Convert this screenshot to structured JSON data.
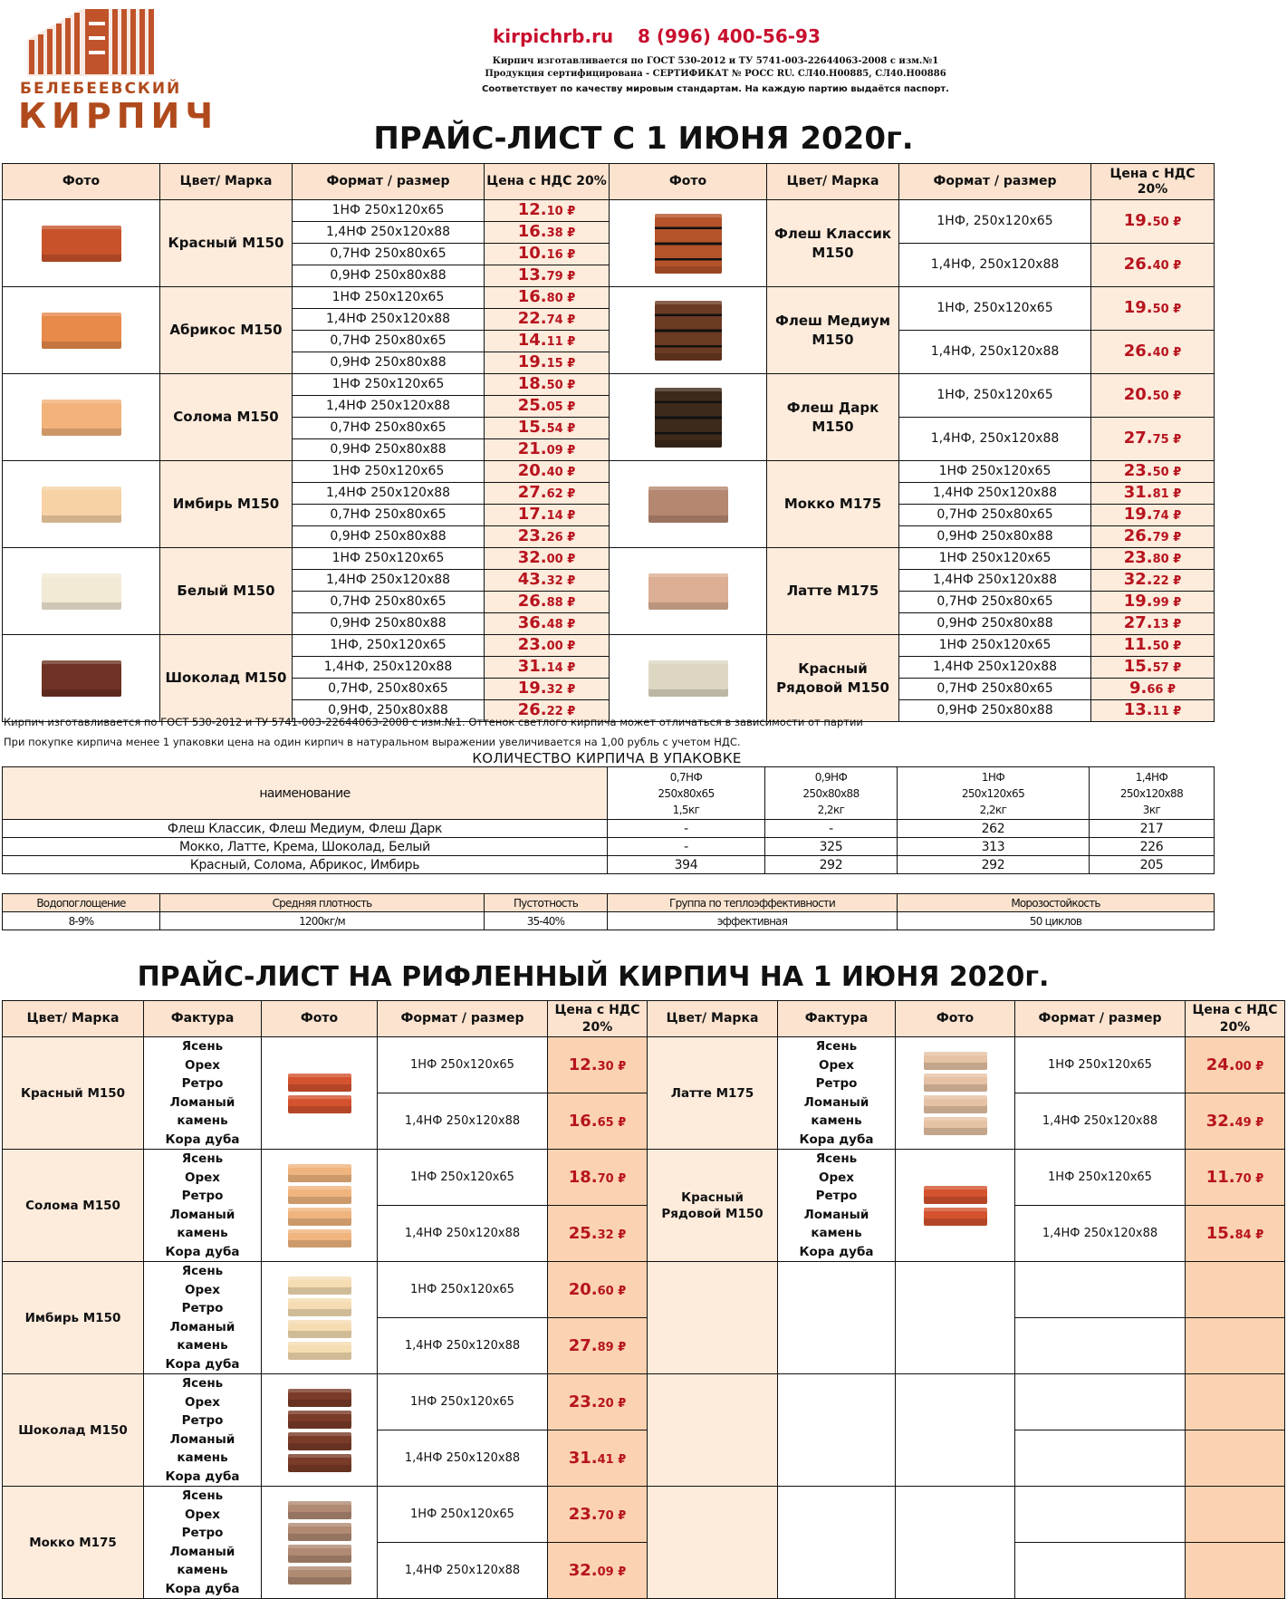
{
  "header": {
    "logo_line1": "БЕЛЕБЕЕВСКИЙ",
    "logo_line2": "КИРПИЧ",
    "site": "kirpichrb.ru",
    "phone": "8 (996) 400-56-93",
    "line1": "Кирпич изготавливается по ГОСТ 530-2012 и ТУ 5741-003-22644063-2008 с изм.№1",
    "line2": "Продукция сертифицирована - СЕРТИФИКАТ № РОСС RU. СЛ40.Н00885, СЛ40.Н00886",
    "line3": "Соответствует по качеству мировым стандартам. На каждую партию выдаётся паспорт."
  },
  "price_title": "ПРАЙС-ЛИСТ С 1 ИЮНЯ 2020г.",
  "columns": [
    "Фото",
    "Цвет/ Марка",
    "Формат / размер",
    "Цена с НДС 20%"
  ],
  "currency": "₽",
  "left_groups": [
    {
      "name": "Красный М150",
      "color": "#c8532a",
      "rows": [
        [
          "1НФ  250х120х65",
          "12.",
          "10"
        ],
        [
          "1,4НФ 250х120х88",
          "16.",
          "38"
        ],
        [
          "0,7НФ  250х80х65",
          "10.",
          "16"
        ],
        [
          "0,9НФ 250х80х88",
          "13.",
          "79"
        ]
      ]
    },
    {
      "name": "Абрикос М150",
      "color": "#e88a4a",
      "rows": [
        [
          "1НФ  250х120х65",
          "16.",
          "80"
        ],
        [
          "1,4НФ 250х120х88",
          "22.",
          "74"
        ],
        [
          "0,7НФ  250х80х65",
          "14.",
          "11"
        ],
        [
          "0,9НФ 250х80х88",
          "19.",
          "15"
        ]
      ]
    },
    {
      "name": "Солома М150",
      "color": "#f2b27a",
      "rows": [
        [
          "1НФ  250х120х65",
          "18.",
          "50"
        ],
        [
          "1,4НФ 250х120х88",
          "25.",
          "05"
        ],
        [
          "0,7НФ  250х80х65",
          "15.",
          "54"
        ],
        [
          "0,9НФ 250х80х88",
          "21.",
          "09"
        ]
      ]
    },
    {
      "name": "Имбирь М150",
      "color": "#f6d2a4",
      "rows": [
        [
          "1НФ  250х120х65",
          "20.",
          "40"
        ],
        [
          "1,4НФ 250х120х88",
          "27.",
          "62"
        ],
        [
          "0,7НФ  250х80х65",
          "17.",
          "14"
        ],
        [
          "0,9НФ 250х80х88",
          "23.",
          "26"
        ]
      ]
    },
    {
      "name": "Белый М150",
      "color": "#f3ead6",
      "rows": [
        [
          "1НФ  250х120х65",
          "32.",
          "00"
        ],
        [
          "1,4НФ 250х120х88",
          "43.",
          "32"
        ],
        [
          "0,7НФ  250х80х65",
          "26.",
          "88"
        ],
        [
          "0,9НФ 250х80х88",
          "36.",
          "48"
        ]
      ]
    },
    {
      "name": "Шоколад М150",
      "color": "#6e3324",
      "rows": [
        [
          "1НФ, 250х120х65",
          "23.",
          "00"
        ],
        [
          "1,4НФ, 250х120х88",
          "31.",
          "14"
        ],
        [
          "0,7НФ, 250х80х65",
          "19.",
          "32"
        ],
        [
          "0,9НФ, 250х80х88",
          "26.",
          "22"
        ]
      ]
    }
  ],
  "right_flash": [
    {
      "name": "Флеш Классик М150",
      "color": "#b5532a",
      "rows": [
        [
          "1НФ, 250х120х65",
          "19.",
          "50"
        ],
        [
          "1,4НФ, 250х120х88",
          "26.",
          "40"
        ]
      ]
    },
    {
      "name": "Флеш Медиум М150",
      "color": "#6b3a22",
      "rows": [
        [
          "1НФ, 250х120х65",
          "19.",
          "50"
        ],
        [
          "1,4НФ, 250х120х88",
          "26.",
          "40"
        ]
      ]
    },
    {
      "name": "Флеш Дарк М150",
      "color": "#3d2a1a",
      "rows": [
        [
          "1НФ, 250х120х65",
          "20.",
          "50"
        ],
        [
          "1,4НФ, 250х120х88",
          "27.",
          "75"
        ]
      ]
    }
  ],
  "right_groups": [
    {
      "name": "Мокко М175",
      "color": "#b68770",
      "rows": [
        [
          "1НФ  250х120х65",
          "23.",
          "50"
        ],
        [
          "1,4НФ 250х120х88",
          "31.",
          "81"
        ],
        [
          "0,7НФ  250х80х65",
          "19.",
          "74"
        ],
        [
          "0,9НФ 250х80х88",
          "26.",
          "79"
        ]
      ]
    },
    {
      "name": "Латте М175",
      "color": "#dcae93",
      "rows": [
        [
          "1НФ  250х120х65",
          "23.",
          "80"
        ],
        [
          "1,4НФ 250х120х88",
          "32.",
          "22"
        ],
        [
          "0,7НФ  250х80х65",
          "19.",
          "99"
        ],
        [
          "0,9НФ 250х80х88",
          "27.",
          "13"
        ]
      ]
    },
    {
      "name": "Красный  Рядовой М150",
      "color": "#ddd6c2",
      "rows": [
        [
          "1НФ  250х120х65",
          "11.",
          "50"
        ],
        [
          "1,4НФ 250х120х88",
          "15.",
          "57"
        ],
        [
          "0,7НФ  250х80х65",
          "9.",
          "66"
        ],
        [
          "0,9НФ 250х80х88",
          "13.",
          "11"
        ]
      ]
    }
  ],
  "notes": [
    "Кирпич изготавливается по ГОСТ 530-2012 и ТУ 5741-003-22644063-2008 с изм.№1. Оттенок светлого кирпича  может отличаться  в  зависимости   от  партии",
    "При  покупке  кирпича  менее 1  упаковки цена  на  один  кирпич  в  натуральном  выражении  увеличивается на 1,00  рубль  с  учетом НДС."
  ],
  "pack": {
    "title": "КОЛИЧЕСТВО КИРПИЧА В УПАКОВКЕ",
    "name_header": "наименование",
    "cols": [
      [
        "0,7НФ",
        "250х80х65",
        "1,5кг"
      ],
      [
        "0,9НФ",
        "250х80х88",
        "2,2кг"
      ],
      [
        "1НФ",
        "250х120х65",
        "2,2кг"
      ],
      [
        "1,4НФ",
        "250х120х88",
        "3кг"
      ]
    ],
    "rows": [
      [
        "Флеш Классик, Флеш Медиум, Флеш Дарк",
        "-",
        "-",
        "262",
        "217"
      ],
      [
        "Мокко, Латте, Крема, Шоколад, Белый",
        "-",
        "325",
        "313",
        "226"
      ],
      [
        "Красный, Солома, Абрикос, Имбирь",
        "394",
        "292",
        "292",
        "205"
      ]
    ]
  },
  "props": {
    "headers": [
      "Водопоглощение",
      "Средняя плотность",
      "Пустотность",
      "Группа по теплоэффективности",
      "Морозостойкость"
    ],
    "values": [
      "8-9%",
      "1200кг/м",
      "35-40%",
      "эффективная",
      "50 циклов"
    ]
  },
  "ribbed_title": "ПРАЙС-ЛИСТ НА РИФЛЕННЫЙ КИРПИЧ НА 1 ИЮНЯ 2020г.",
  "ribbed_columns": [
    "Цвет/ Марка",
    "Фактура",
    "Фото",
    "Формат / размер",
    "Цена с НДС 20%"
  ],
  "texture": "Ясень\nОрех\nРетро\nЛоманый камень\nКора дуба",
  "ribbed_left": [
    {
      "name": "Красный М150",
      "color": "#d4532e",
      "rows": [
        [
          "1НФ 250х120х65",
          "12.",
          "30"
        ],
        [
          "1,4НФ 250х120х88",
          "16.",
          "65"
        ]
      ]
    },
    {
      "name": "Солома М150",
      "color": "#f0b47e",
      "rows": [
        [
          "1НФ 250х120х65",
          "18.",
          "70"
        ],
        [
          "1,4НФ 250х120х88",
          "25.",
          "32"
        ]
      ]
    },
    {
      "name": "Имбирь М150",
      "color": "#f5dcb2",
      "rows": [
        [
          "1НФ 250х120х65",
          "20.",
          "60"
        ],
        [
          "1,4НФ 250х120х88",
          "27.",
          "89"
        ]
      ]
    },
    {
      "name": "Шоколад М150",
      "color": "#7a3b28",
      "rows": [
        [
          "1НФ 250х120х65",
          "23.",
          "20"
        ],
        [
          "1,4НФ 250х120х88",
          "31.",
          "41"
        ]
      ]
    },
    {
      "name": "Мокко М175",
      "color": "#b08a72",
      "rows": [
        [
          "1НФ 250х120х65",
          "23.",
          "70"
        ],
        [
          "1,4НФ 250х120х88",
          "32.",
          "09"
        ]
      ]
    }
  ],
  "ribbed_right": [
    {
      "name": "Латте М175",
      "color": "#e6c2a4",
      "rows": [
        [
          "1НФ 250х120х65",
          "24.",
          "00"
        ],
        [
          "1,4НФ 250х120х88",
          "32.",
          "49"
        ]
      ]
    },
    {
      "name": "Красный     Рядовой М150",
      "color": "#d4532e",
      "rows": [
        [
          "1НФ 250х120х65",
          "11.",
          "70"
        ],
        [
          "1,4НФ 250х120х88",
          "15.",
          "84"
        ]
      ]
    }
  ]
}
